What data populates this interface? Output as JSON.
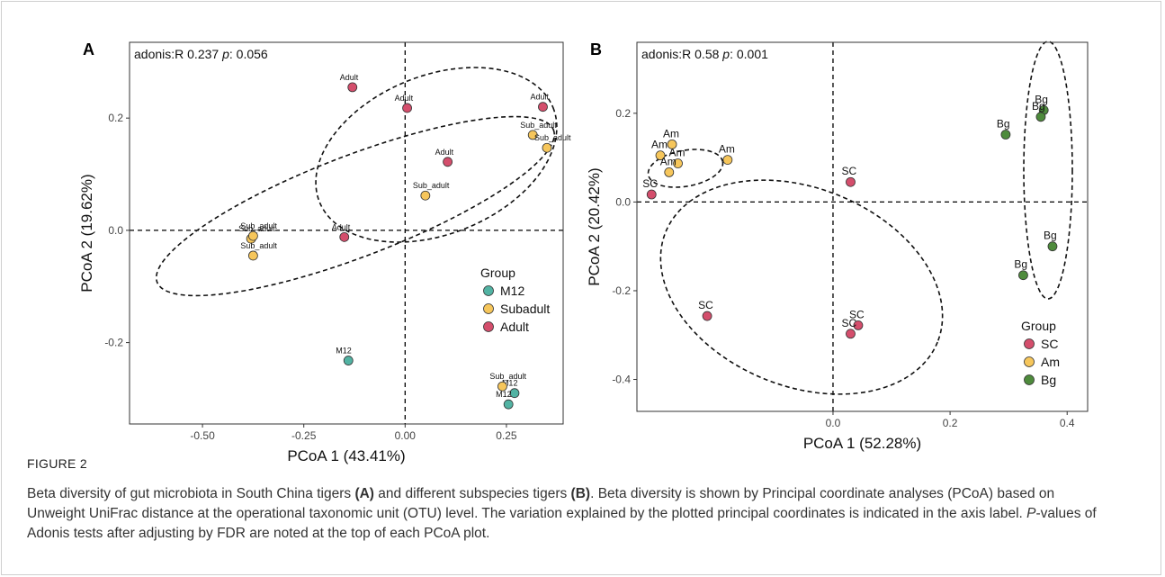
{
  "figure_label": "FIGURE 2",
  "caption": {
    "p1": "Beta diversity of gut microbiota in South China tigers ",
    "bA": "(A)",
    "p2": " and different subspecies tigers ",
    "bB": "(B)",
    "p3": ". Beta diversity is shown by Principal coordinate analyses (PCoA) based on Unweight UniFrac distance at the operational taxonomic unit (OTU) level. The variation explained by the plotted principal coordinates is indicated in the axis label. ",
    "iP": "P",
    "p4": "-values of Adonis tests after adjusting by FDR are noted at the top of each PCoA plot."
  },
  "colors": {
    "M12": "#52b3a3",
    "Subadult": "#f6c65b",
    "Adult": "#d44e6c",
    "SC": "#d44e6c",
    "Am": "#f6c65b",
    "Bg": "#4e8b3c"
  },
  "chart_data": [
    {
      "type": "scatter",
      "panel": "A",
      "annotation": "adonis:R 0.237 p: 0.056",
      "annotation_parts": [
        "adonis:R 0.237 ",
        "p",
        ": 0.056"
      ],
      "xlabel": "PCoA 1 (43.41%)",
      "ylabel": "PCoA 2 (19.62%)",
      "xlim": [
        -0.68,
        0.39
      ],
      "ylim": [
        -0.345,
        0.335
      ],
      "xticks": [
        -0.5,
        -0.25,
        0.0,
        0.25
      ],
      "xtick_labels": [
        "-0.50",
        "-0.25",
        "0.00",
        "0.25"
      ],
      "yticks": [
        -0.2,
        0.0,
        0.2
      ],
      "ytick_labels": [
        "-0.2",
        "0.0",
        "0.2"
      ],
      "legend": {
        "title": "Group",
        "position": "bottom-right",
        "entries": [
          "M12",
          "Subadult",
          "Adult"
        ]
      },
      "series": [
        {
          "name": "M12",
          "points": [
            {
              "x": -0.14,
              "y": -0.232,
              "label": "M12"
            },
            {
              "x": 0.27,
              "y": -0.29,
              "label": "M12"
            },
            {
              "x": 0.255,
              "y": -0.31,
              "label": "M12"
            }
          ]
        },
        {
          "name": "Subadult",
          "points": [
            {
              "x": 0.315,
              "y": 0.17,
              "label": "Sub_adult"
            },
            {
              "x": 0.35,
              "y": 0.147,
              "label": "Sub_adult"
            },
            {
              "x": 0.05,
              "y": 0.062,
              "label": "Sub_adult"
            },
            {
              "x": -0.38,
              "y": -0.015,
              "label": "Sub_adult"
            },
            {
              "x": -0.375,
              "y": -0.01,
              "label": "Sub_adult"
            },
            {
              "x": -0.375,
              "y": -0.045,
              "label": "Sub_adult"
            },
            {
              "x": 0.24,
              "y": -0.278,
              "label": "Sub_adult"
            }
          ]
        },
        {
          "name": "Adult",
          "points": [
            {
              "x": -0.13,
              "y": 0.255,
              "label": "Adult"
            },
            {
              "x": 0.005,
              "y": 0.218,
              "label": "Adult"
            },
            {
              "x": 0.34,
              "y": 0.22,
              "label": "Adult"
            },
            {
              "x": 0.105,
              "y": 0.122,
              "label": "Adult"
            },
            {
              "x": -0.15,
              "y": -0.012,
              "label": "Adult"
            }
          ]
        }
      ],
      "ellipses": [
        "Subadult",
        "Adult"
      ]
    },
    {
      "type": "scatter",
      "panel": "B",
      "annotation": "adonis:R 0.58 p: 0.001",
      "annotation_parts": [
        "adonis:R 0.58 ",
        "p",
        ": 0.001"
      ],
      "xlabel": "PCoA 1 (52.28%)",
      "ylabel": "PCoA 2 (20.42%)",
      "xlim": [
        -0.335,
        0.435
      ],
      "ylim": [
        -0.472,
        0.36
      ],
      "xticks": [
        0.0,
        0.2,
        0.4
      ],
      "xtick_labels": [
        "0.0",
        "0.2",
        "0.4"
      ],
      "yticks": [
        -0.4,
        -0.2,
        0.0,
        0.2
      ],
      "ytick_labels": [
        "-0.4",
        "-0.2",
        "0.0",
        "0.2"
      ],
      "legend": {
        "title": "Group",
        "position": "bottom-right",
        "entries": [
          "SC",
          "Am",
          "Bg"
        ]
      },
      "series": [
        {
          "name": "SC",
          "points": [
            {
              "x": -0.31,
              "y": 0.017,
              "label": "SC"
            },
            {
              "x": 0.03,
              "y": 0.045,
              "label": "SC"
            },
            {
              "x": -0.215,
              "y": -0.257,
              "label": "SC"
            },
            {
              "x": 0.043,
              "y": -0.278,
              "label": "SC"
            },
            {
              "x": 0.03,
              "y": -0.297,
              "label": "SC"
            }
          ]
        },
        {
          "name": "Am",
          "points": [
            {
              "x": -0.275,
              "y": 0.13,
              "label": "Am"
            },
            {
              "x": -0.295,
              "y": 0.105,
              "label": "Am"
            },
            {
              "x": -0.265,
              "y": 0.087,
              "label": "Am"
            },
            {
              "x": -0.18,
              "y": 0.095,
              "label": "Am"
            },
            {
              "x": -0.28,
              "y": 0.067,
              "label": "Am"
            }
          ]
        },
        {
          "name": "Bg",
          "points": [
            {
              "x": 0.36,
              "y": 0.207,
              "label": "Bg"
            },
            {
              "x": 0.355,
              "y": 0.192,
              "label": "Bg"
            },
            {
              "x": 0.295,
              "y": 0.152,
              "label": "Bg"
            },
            {
              "x": 0.375,
              "y": -0.1,
              "label": "Bg"
            },
            {
              "x": 0.325,
              "y": -0.165,
              "label": "Bg"
            }
          ]
        }
      ],
      "ellipses": [
        "SC",
        "Am",
        "Bg"
      ]
    }
  ]
}
